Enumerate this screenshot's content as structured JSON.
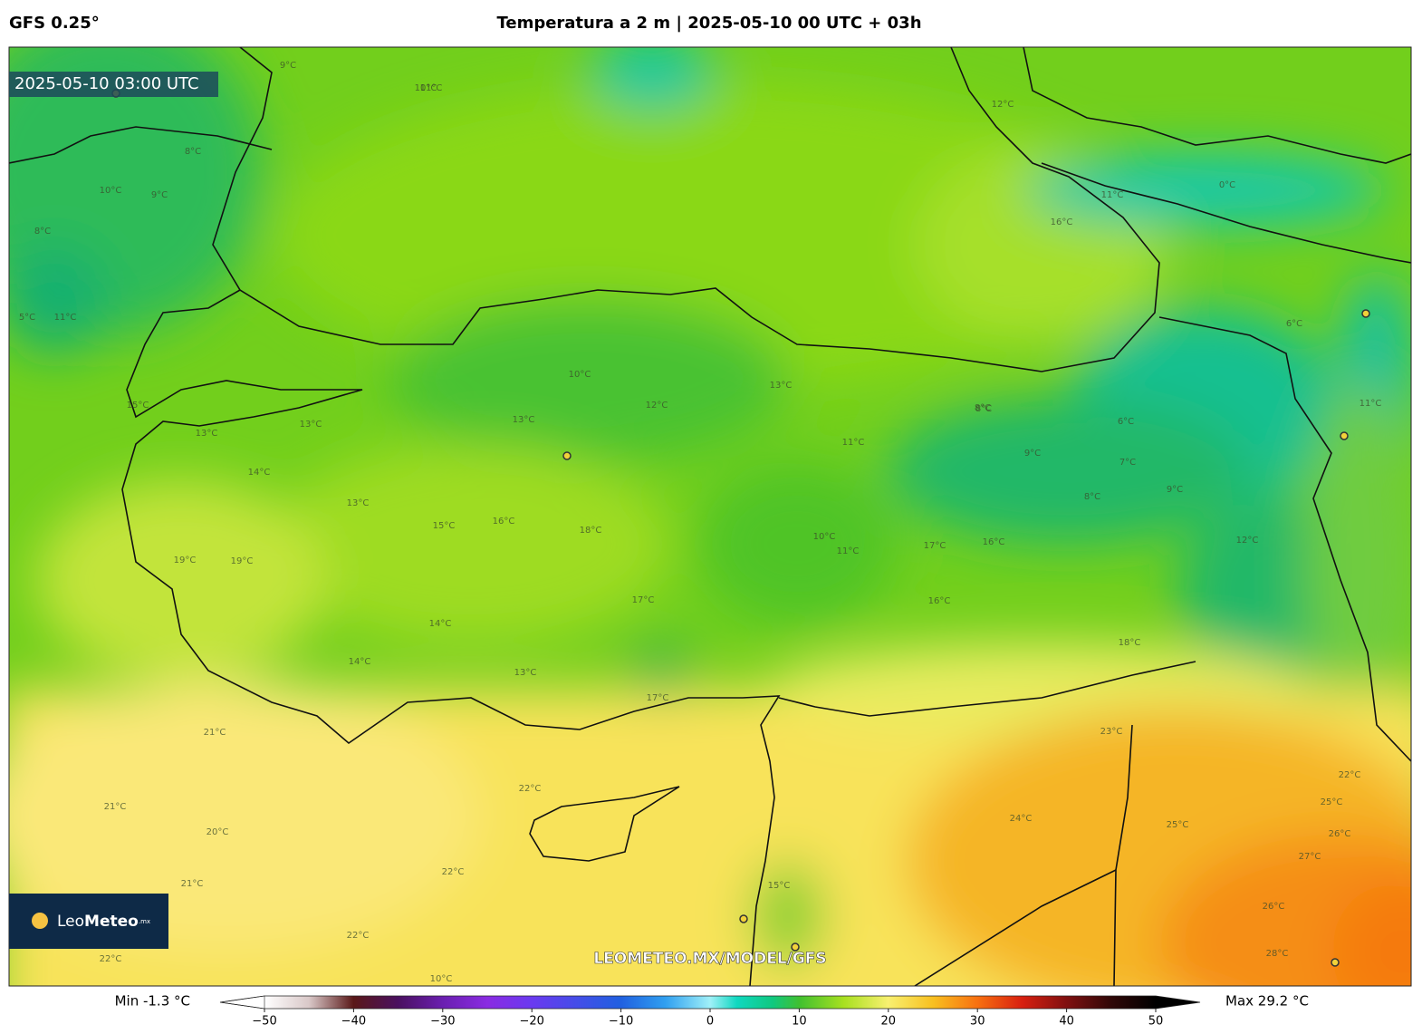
{
  "header": {
    "model": "GFS 0.25°",
    "title": "Temperatura a 2 m | 2025-05-10 00 UTC + 03h"
  },
  "map": {
    "timestamp": "2025-05-10 03:00 UTC",
    "watermark": "LEOMETEO.MX/MODEL/GFS",
    "logo": {
      "name_light": "Leo",
      "name_bold": "Meteo",
      "suffix": ".mx"
    },
    "contour_labels": [
      "9°C",
      "10°C",
      "8°C",
      "10°C",
      "9°C",
      "8°C",
      "11°C",
      "5°C",
      "11°C",
      "13°C",
      "15°C",
      "13°C",
      "14°C",
      "13°C",
      "15°C",
      "16°C",
      "18°C",
      "19°C",
      "19°C",
      "21°C",
      "21°C",
      "20°C",
      "21°C",
      "22°C",
      "22°C",
      "22°C",
      "22°C",
      "10°C",
      "11°C",
      "13°C",
      "12°C",
      "13°C",
      "10°C",
      "11°C",
      "17°C",
      "14°C",
      "13°C",
      "14°C",
      "17°C",
      "16°C",
      "16°C",
      "17°C",
      "18°C",
      "23°C",
      "24°C",
      "25°C",
      "26°C",
      "27°C",
      "28°C",
      "26°C",
      "10°C",
      "9°C",
      "8°C",
      "7°C",
      "6°C",
      "9°C",
      "8°C",
      "12°C",
      "12°C",
      "16°C",
      "6°C",
      "0°C",
      "11°C",
      "8°C",
      "15°C",
      "11°C",
      "22°C",
      "25°C"
    ]
  },
  "colorbar": {
    "min_label": "Min -1.3 °C",
    "max_label": "Max 29.2 °C",
    "range": [
      -50,
      50
    ],
    "ticks": [
      {
        "value": -50,
        "label": "−50"
      },
      {
        "value": -40,
        "label": "−40"
      },
      {
        "value": -30,
        "label": "−30"
      },
      {
        "value": -20,
        "label": "−20"
      },
      {
        "value": -10,
        "label": "−10"
      },
      0,
      10,
      20,
      30,
      40,
      50
    ],
    "stops": [
      {
        "value": -50,
        "color": "#ffffff"
      },
      {
        "value": -45,
        "color": "#d9c8c8"
      },
      {
        "value": -40,
        "color": "#5a1818"
      },
      {
        "value": -35,
        "color": "#4a1060"
      },
      {
        "value": -30,
        "color": "#6a1fb0"
      },
      {
        "value": -25,
        "color": "#8a2be2"
      },
      {
        "value": -20,
        "color": "#6a3af0"
      },
      {
        "value": -10,
        "color": "#2060e0"
      },
      {
        "value": -5,
        "color": "#30a0f0"
      },
      {
        "value": 0,
        "color": "#a0f0f8"
      },
      {
        "value": 3,
        "color": "#10d8c0"
      },
      {
        "value": 7,
        "color": "#10c880"
      },
      {
        "value": 10,
        "color": "#40c030"
      },
      {
        "value": 15,
        "color": "#a8e020"
      },
      {
        "value": 20,
        "color": "#f8f070"
      },
      {
        "value": 25,
        "color": "#f8c020"
      },
      {
        "value": 30,
        "color": "#f87010"
      },
      {
        "value": 35,
        "color": "#d82010"
      },
      {
        "value": 40,
        "color": "#801010"
      },
      {
        "value": 45,
        "color": "#300808"
      },
      {
        "value": 50,
        "color": "#000000"
      }
    ]
  }
}
